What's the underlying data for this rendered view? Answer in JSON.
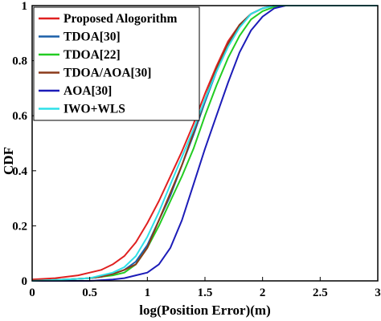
{
  "chart_data": {
    "type": "line",
    "title": "",
    "xlabel": "log(Position Error)(m)",
    "ylabel": "CDF",
    "xlim": [
      0,
      3
    ],
    "ylim": [
      0,
      1
    ],
    "xticks": [
      "0",
      "0.5",
      "1",
      "1.5",
      "2",
      "2.5",
      "3"
    ],
    "yticks": [
      "0",
      "0.2",
      "0.4",
      "0.6",
      "0.8",
      "1"
    ],
    "grid": false,
    "legend_position": "top-left",
    "series": [
      {
        "name": "Proposed Alogorithm",
        "color": "#e02020",
        "x": [
          0,
          0.2,
          0.4,
          0.5,
          0.6,
          0.7,
          0.8,
          0.9,
          1.0,
          1.1,
          1.2,
          1.3,
          1.4,
          1.5,
          1.6,
          1.7,
          1.8,
          1.9,
          2.0,
          2.1,
          2.2,
          3.0
        ],
        "y": [
          0.005,
          0.01,
          0.02,
          0.03,
          0.04,
          0.06,
          0.09,
          0.14,
          0.21,
          0.29,
          0.38,
          0.47,
          0.57,
          0.68,
          0.78,
          0.87,
          0.93,
          0.97,
          0.99,
          1.0,
          1.0,
          1.0
        ]
      },
      {
        "name": "TDOA[30]",
        "color": "#1a5fa8",
        "x": [
          0,
          0.3,
          0.5,
          0.6,
          0.7,
          0.8,
          0.9,
          1.0,
          1.1,
          1.2,
          1.3,
          1.4,
          1.5,
          1.6,
          1.7,
          1.8,
          1.9,
          2.0,
          2.1,
          2.2,
          3.0
        ],
        "y": [
          0.0,
          0.005,
          0.01,
          0.015,
          0.025,
          0.04,
          0.07,
          0.13,
          0.22,
          0.31,
          0.42,
          0.53,
          0.65,
          0.76,
          0.86,
          0.93,
          0.97,
          0.99,
          1.0,
          1.0,
          1.0
        ]
      },
      {
        "name": "TDOA[22]",
        "color": "#22cc22",
        "x": [
          0,
          0.3,
          0.5,
          0.6,
          0.7,
          0.8,
          0.9,
          1.0,
          1.1,
          1.2,
          1.3,
          1.4,
          1.5,
          1.6,
          1.7,
          1.8,
          1.9,
          2.0,
          2.1,
          2.2,
          3.0
        ],
        "y": [
          0.0,
          0.005,
          0.01,
          0.015,
          0.02,
          0.03,
          0.06,
          0.12,
          0.2,
          0.29,
          0.38,
          0.48,
          0.6,
          0.71,
          0.81,
          0.89,
          0.95,
          0.98,
          0.995,
          1.0,
          1.0
        ]
      },
      {
        "name": "TDOA/AOA[30]",
        "color": "#8b3a1a",
        "x": [
          0,
          0.3,
          0.5,
          0.6,
          0.7,
          0.8,
          0.9,
          1.0,
          1.1,
          1.2,
          1.3,
          1.4,
          1.5,
          1.6,
          1.7,
          1.8,
          1.9,
          2.0,
          2.1,
          2.2,
          3.0
        ],
        "y": [
          0.0,
          0.005,
          0.01,
          0.015,
          0.025,
          0.04,
          0.06,
          0.12,
          0.22,
          0.32,
          0.42,
          0.54,
          0.66,
          0.77,
          0.86,
          0.93,
          0.97,
          0.99,
          1.0,
          1.0,
          1.0
        ]
      },
      {
        "name": "AOA[30]",
        "color": "#1c1cb8",
        "x": [
          0,
          0.5,
          0.7,
          0.8,
          0.9,
          1.0,
          1.1,
          1.2,
          1.3,
          1.4,
          1.5,
          1.6,
          1.7,
          1.8,
          1.9,
          2.0,
          2.1,
          2.2,
          3.0
        ],
        "y": [
          0.0,
          0.0,
          0.005,
          0.01,
          0.02,
          0.03,
          0.06,
          0.12,
          0.22,
          0.35,
          0.48,
          0.6,
          0.72,
          0.83,
          0.91,
          0.96,
          0.99,
          1.0,
          1.0
        ]
      },
      {
        "name": "IWO+WLS",
        "color": "#2ee0e8",
        "x": [
          0,
          0.3,
          0.5,
          0.6,
          0.7,
          0.8,
          0.9,
          1.0,
          1.1,
          1.2,
          1.3,
          1.4,
          1.5,
          1.6,
          1.7,
          1.8,
          1.9,
          2.0,
          2.1,
          2.2,
          3.0
        ],
        "y": [
          0.0,
          0.005,
          0.01,
          0.02,
          0.03,
          0.05,
          0.09,
          0.16,
          0.25,
          0.35,
          0.45,
          0.55,
          0.66,
          0.76,
          0.85,
          0.92,
          0.97,
          0.99,
          1.0,
          1.0,
          1.0
        ]
      }
    ]
  }
}
